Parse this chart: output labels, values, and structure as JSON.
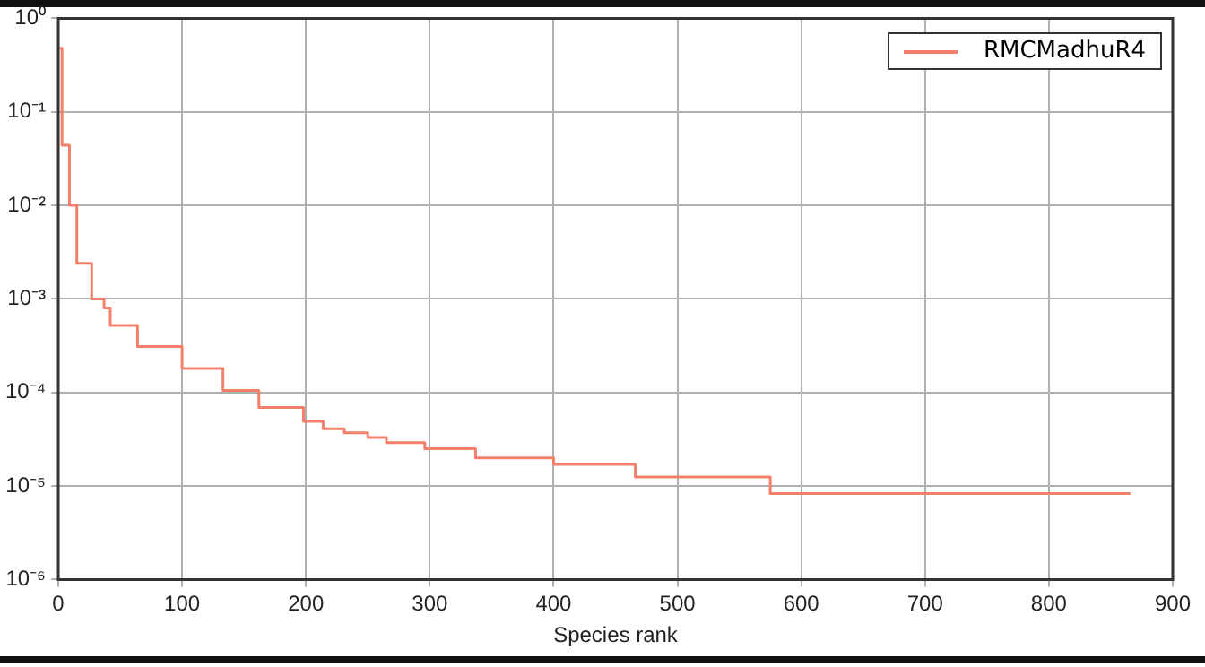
{
  "chart_data": {
    "type": "step",
    "xlabel": "Species rank",
    "x": [
      1,
      3,
      9,
      15,
      27,
      37,
      42,
      64,
      100,
      133,
      162,
      198,
      214,
      231,
      250,
      265,
      296,
      337,
      400,
      466,
      575,
      866
    ],
    "series": [
      {
        "name": "RMCMadhuR4",
        "color": "#f4806c",
        "values": [
          0.48,
          0.044,
          0.01,
          0.0024,
          0.001,
          0.0008,
          0.00052,
          0.00031,
          0.00018,
          0.000105,
          6.9e-05,
          4.9e-05,
          4.1e-05,
          3.7e-05,
          3.3e-05,
          2.9e-05,
          2.5e-05,
          2e-05,
          1.7e-05,
          1.25e-05,
          8.3e-06,
          8.3e-06
        ]
      }
    ],
    "log": "y",
    "xlim": [
      0,
      900
    ],
    "ylim": [
      1e-06,
      1
    ],
    "xticks": [
      0,
      100,
      200,
      300,
      400,
      500,
      600,
      700,
      800,
      900
    ],
    "yticks": [
      {
        "value": 1e-06,
        "label": "10⁻⁶"
      },
      {
        "value": 1e-05,
        "label": "10⁻⁵"
      },
      {
        "value": 0.0001,
        "label": "10⁻⁴"
      },
      {
        "value": 0.001,
        "label": "10⁻³"
      },
      {
        "value": 0.01,
        "label": "10⁻²"
      },
      {
        "value": 0.1,
        "label": "10⁻¹"
      },
      {
        "value": 1,
        "label": "10⁰"
      }
    ],
    "grid": true,
    "legend": "top right",
    "line_style": "solid",
    "marker": "none"
  }
}
